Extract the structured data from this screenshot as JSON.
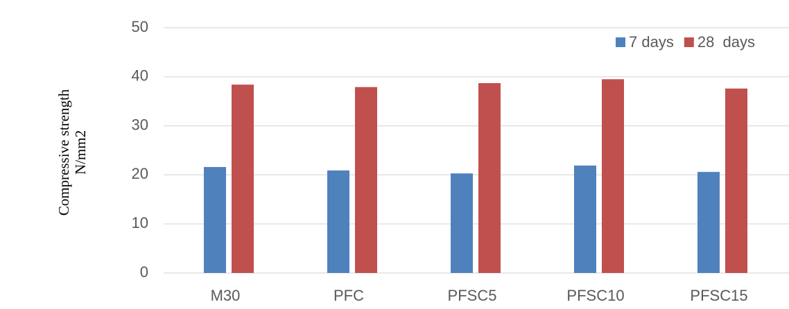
{
  "chart_data": {
    "type": "bar",
    "y_label": [
      "Compressive strength",
      "N/mm2"
    ],
    "categories": [
      "M30",
      "PFC",
      "PFSC5",
      "PFSC10",
      "PFSC15"
    ],
    "series": [
      {
        "name": "7 days",
        "color": "#4f81bd",
        "values": [
          21.6,
          20.9,
          20.3,
          21.9,
          20.6
        ]
      },
      {
        "name": "28  days",
        "color": "#c0504d",
        "values": [
          38.4,
          37.9,
          38.7,
          39.5,
          37.6
        ]
      }
    ],
    "ylim": [
      0,
      50
    ],
    "yticks": [
      0,
      10,
      20,
      30,
      40,
      50
    ],
    "grid": true,
    "legend": "top-right"
  }
}
